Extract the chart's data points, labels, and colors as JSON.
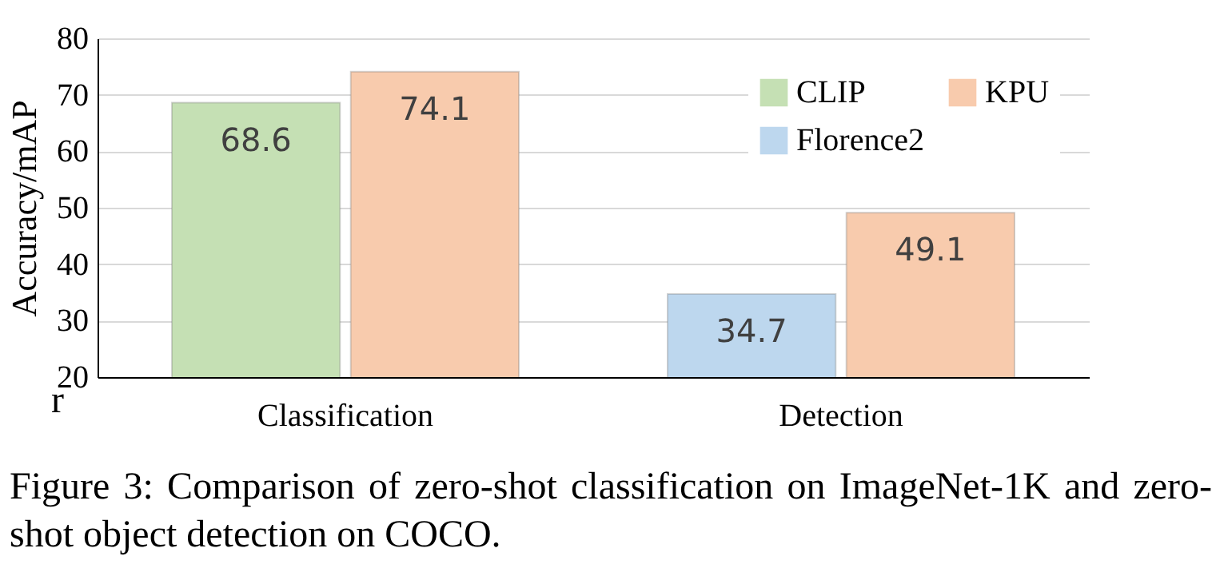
{
  "chart_data": {
    "type": "bar",
    "ylabel": "Accuracy/mAP",
    "categories": [
      "Classification",
      "Detection"
    ],
    "series": [
      {
        "name": "CLIP",
        "color": "#c5e0b4",
        "values": [
          68.6,
          null
        ]
      },
      {
        "name": "Florence2",
        "color": "#bdd7ee",
        "values": [
          null,
          34.7
        ]
      },
      {
        "name": "KPU",
        "color": "#f8cbad",
        "values": [
          74.1,
          49.1
        ]
      }
    ],
    "ylim": [
      20,
      80
    ],
    "yticks": [
      20,
      30,
      40,
      50,
      60,
      70,
      80
    ],
    "grid": "y",
    "legend": "top right",
    "data_labels": true,
    "annotations": [
      "r",
      "Figure 3: Comparison of zero-shot classification on ImageNet-1K and zero-shot object detection on COCO."
    ]
  }
}
